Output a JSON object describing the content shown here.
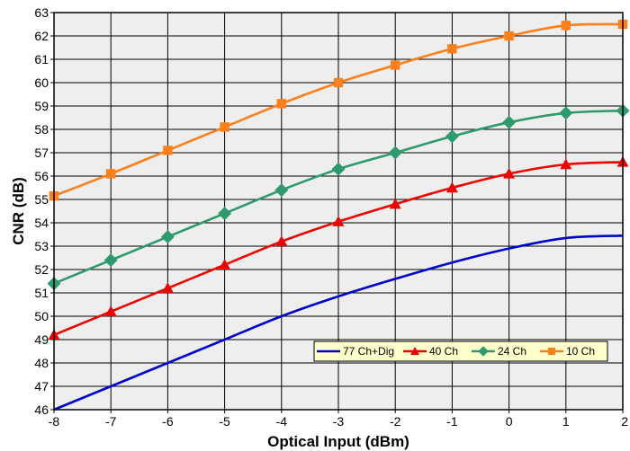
{
  "chart_data": {
    "type": "line",
    "xlabel": "Optical Input (dBm)",
    "ylabel": "CNR (dB)",
    "xlim": [
      -8,
      2
    ],
    "ylim": [
      46,
      63
    ],
    "x_ticks": [
      "-8",
      "-7",
      "-6",
      "-5",
      "-4",
      "-3",
      "-2",
      "-1",
      "0",
      "1",
      "2"
    ],
    "y_ticks": [
      "46",
      "47",
      "48",
      "49",
      "50",
      "51",
      "52",
      "53",
      "54",
      "55",
      "56",
      "57",
      "58",
      "59",
      "60",
      "61",
      "62",
      "63"
    ],
    "grid": true,
    "legend_position": "lower-right",
    "x": [
      -8,
      -7,
      -6,
      -5,
      -4,
      -3,
      -2,
      -1,
      0,
      1,
      2
    ],
    "series": [
      {
        "name": "77 Ch+Dig",
        "color": "#0000cc",
        "marker": "none",
        "values": [
          46.0,
          47.0,
          48.0,
          49.0,
          50.0,
          50.85,
          51.6,
          52.3,
          52.9,
          53.35,
          53.45
        ]
      },
      {
        "name": "40 Ch",
        "color": "#ee0000",
        "marker": "triangle",
        "values": [
          49.2,
          50.2,
          51.2,
          52.2,
          53.2,
          54.05,
          54.8,
          55.5,
          56.1,
          56.5,
          56.6
        ]
      },
      {
        "name": "24 Ch",
        "color": "#2e9a6e",
        "marker": "diamond",
        "values": [
          51.4,
          52.4,
          53.4,
          54.4,
          55.4,
          56.3,
          57.0,
          57.7,
          58.3,
          58.7,
          58.8
        ]
      },
      {
        "name": "10 Ch",
        "color": "#ff7f1a",
        "marker": "square",
        "values": [
          55.15,
          56.1,
          57.1,
          58.1,
          59.1,
          60.0,
          60.75,
          61.45,
          62.0,
          62.45,
          62.5
        ]
      }
    ]
  }
}
